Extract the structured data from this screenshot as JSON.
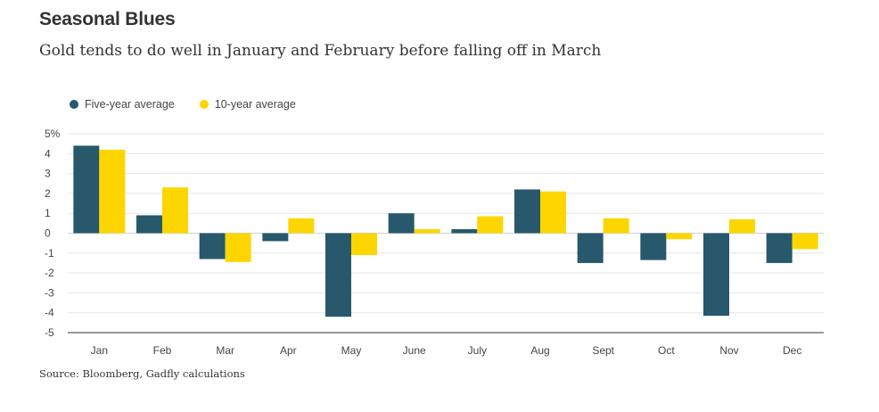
{
  "header": {
    "title": "Seasonal Blues",
    "subtitle": "Gold tends to do well in January and February before falling off in March"
  },
  "source": "Source: Bloomberg, Gadfly calculations",
  "colors": {
    "five_year": "#27586b",
    "ten_year": "#fdd600",
    "grid": "#e6e6e6",
    "axis": "#333333"
  },
  "chart_data": {
    "type": "bar",
    "categories": [
      "Jan",
      "Feb",
      "Mar",
      "Apr",
      "May",
      "June",
      "July",
      "Aug",
      "Sept",
      "Oct",
      "Nov",
      "Dec"
    ],
    "series": [
      {
        "name": "Five-year average",
        "values": [
          4.4,
          0.9,
          -1.3,
          -0.4,
          -4.2,
          1.0,
          0.2,
          2.2,
          -1.5,
          -1.35,
          -4.15,
          -1.5
        ]
      },
      {
        "name": "10-year average",
        "values": [
          4.2,
          2.3,
          -1.45,
          0.75,
          -1.1,
          0.2,
          0.85,
          2.1,
          0.75,
          -0.3,
          0.7,
          -0.8
        ]
      }
    ],
    "ylim": [
      -5,
      5
    ],
    "yticks": [
      -5,
      -4,
      -3,
      -2,
      -1,
      0,
      1,
      2,
      3,
      4,
      5
    ],
    "ytick_labels": [
      "-5",
      "-4",
      "-3",
      "-2",
      "-1",
      "0",
      "1",
      "2",
      "3",
      "4",
      "5%"
    ],
    "grid": true,
    "legend_position": "top-left"
  }
}
